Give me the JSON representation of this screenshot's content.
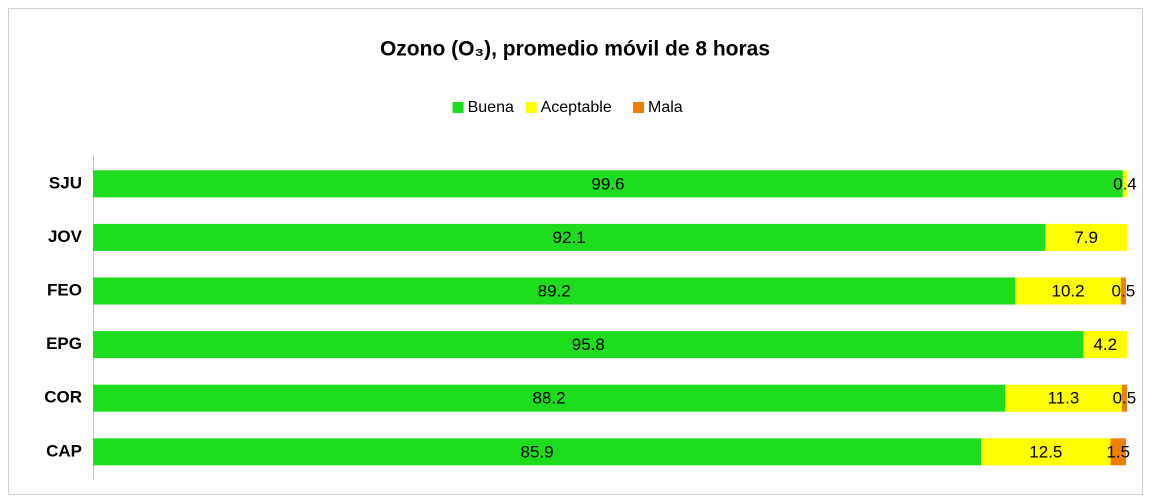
{
  "chart_data": {
    "type": "stacked_bar_horizontal",
    "title": "Ozono (O₃), promedio móvil de 8 horas",
    "categories": [
      "SJU",
      "JOV",
      "FEO",
      "EPG",
      "COR",
      "CAP"
    ],
    "series": [
      {
        "name": "Buena",
        "color": "#1edc1e",
        "values": [
          99.6,
          92.1,
          89.2,
          95.8,
          88.2,
          85.9
        ]
      },
      {
        "name": "Aceptable",
        "color": "#ffff00",
        "values": [
          0.4,
          7.9,
          10.2,
          4.2,
          11.3,
          12.5
        ]
      },
      {
        "name": "Mala",
        "color": "#f07f0a",
        "values": [
          null,
          null,
          0.5,
          null,
          0.5,
          1.5
        ]
      }
    ],
    "xlim": [
      0,
      100
    ],
    "legend": "top"
  }
}
